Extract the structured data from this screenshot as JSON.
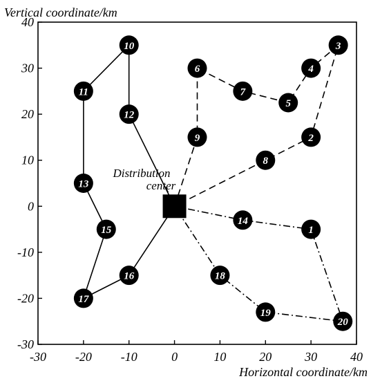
{
  "chart_data": {
    "type": "scatter",
    "title": "",
    "xlabel": "Horizontal coordinate/km",
    "ylabel": "Vertical coordinate/km",
    "xlim": [
      -30,
      40
    ],
    "ylim": [
      -30,
      40
    ],
    "x_ticks": [
      "-30",
      "-20",
      "-10",
      "0",
      "10",
      "20",
      "30",
      "40"
    ],
    "y_ticks": [
      "-30",
      "-20",
      "-10",
      "0",
      "10",
      "20",
      "30",
      "40"
    ],
    "grid": false,
    "depot": {
      "label_line1": "Distribution",
      "label_line2": "center",
      "x": 0,
      "y": 0
    },
    "points": [
      {
        "id": "1",
        "x": 30,
        "y": -5
      },
      {
        "id": "2",
        "x": 30,
        "y": 15
      },
      {
        "id": "3",
        "x": 36,
        "y": 35
      },
      {
        "id": "4",
        "x": 30,
        "y": 30
      },
      {
        "id": "5",
        "x": 25,
        "y": 22.5
      },
      {
        "id": "6",
        "x": 5,
        "y": 30
      },
      {
        "id": "7",
        "x": 15,
        "y": 25
      },
      {
        "id": "8",
        "x": 20,
        "y": 10
      },
      {
        "id": "9",
        "x": 5,
        "y": 15
      },
      {
        "id": "10",
        "x": -10,
        "y": 35
      },
      {
        "id": "11",
        "x": -20,
        "y": 25
      },
      {
        "id": "12",
        "x": -10,
        "y": 20
      },
      {
        "id": "13",
        "x": -20,
        "y": 5
      },
      {
        "id": "14",
        "x": 15,
        "y": -3
      },
      {
        "id": "15",
        "x": -15,
        "y": -5
      },
      {
        "id": "16",
        "x": -10,
        "y": -15
      },
      {
        "id": "17",
        "x": -20,
        "y": -20
      },
      {
        "id": "18",
        "x": 10,
        "y": -15
      },
      {
        "id": "19",
        "x": 20,
        "y": -23
      },
      {
        "id": "20",
        "x": 37,
        "y": -25
      }
    ],
    "routes": [
      {
        "style": "solid",
        "path": [
          "DC",
          "12",
          "10",
          "11",
          "13",
          "15",
          "17",
          "16",
          "DC"
        ]
      },
      {
        "style": "dashed",
        "path": [
          "DC",
          "9",
          "6",
          "7",
          "5",
          "4",
          "3",
          "2",
          "8",
          "DC"
        ]
      },
      {
        "style": "dashdot",
        "path": [
          "DC",
          "14",
          "1",
          "20",
          "19",
          "18",
          "DC"
        ]
      }
    ]
  }
}
